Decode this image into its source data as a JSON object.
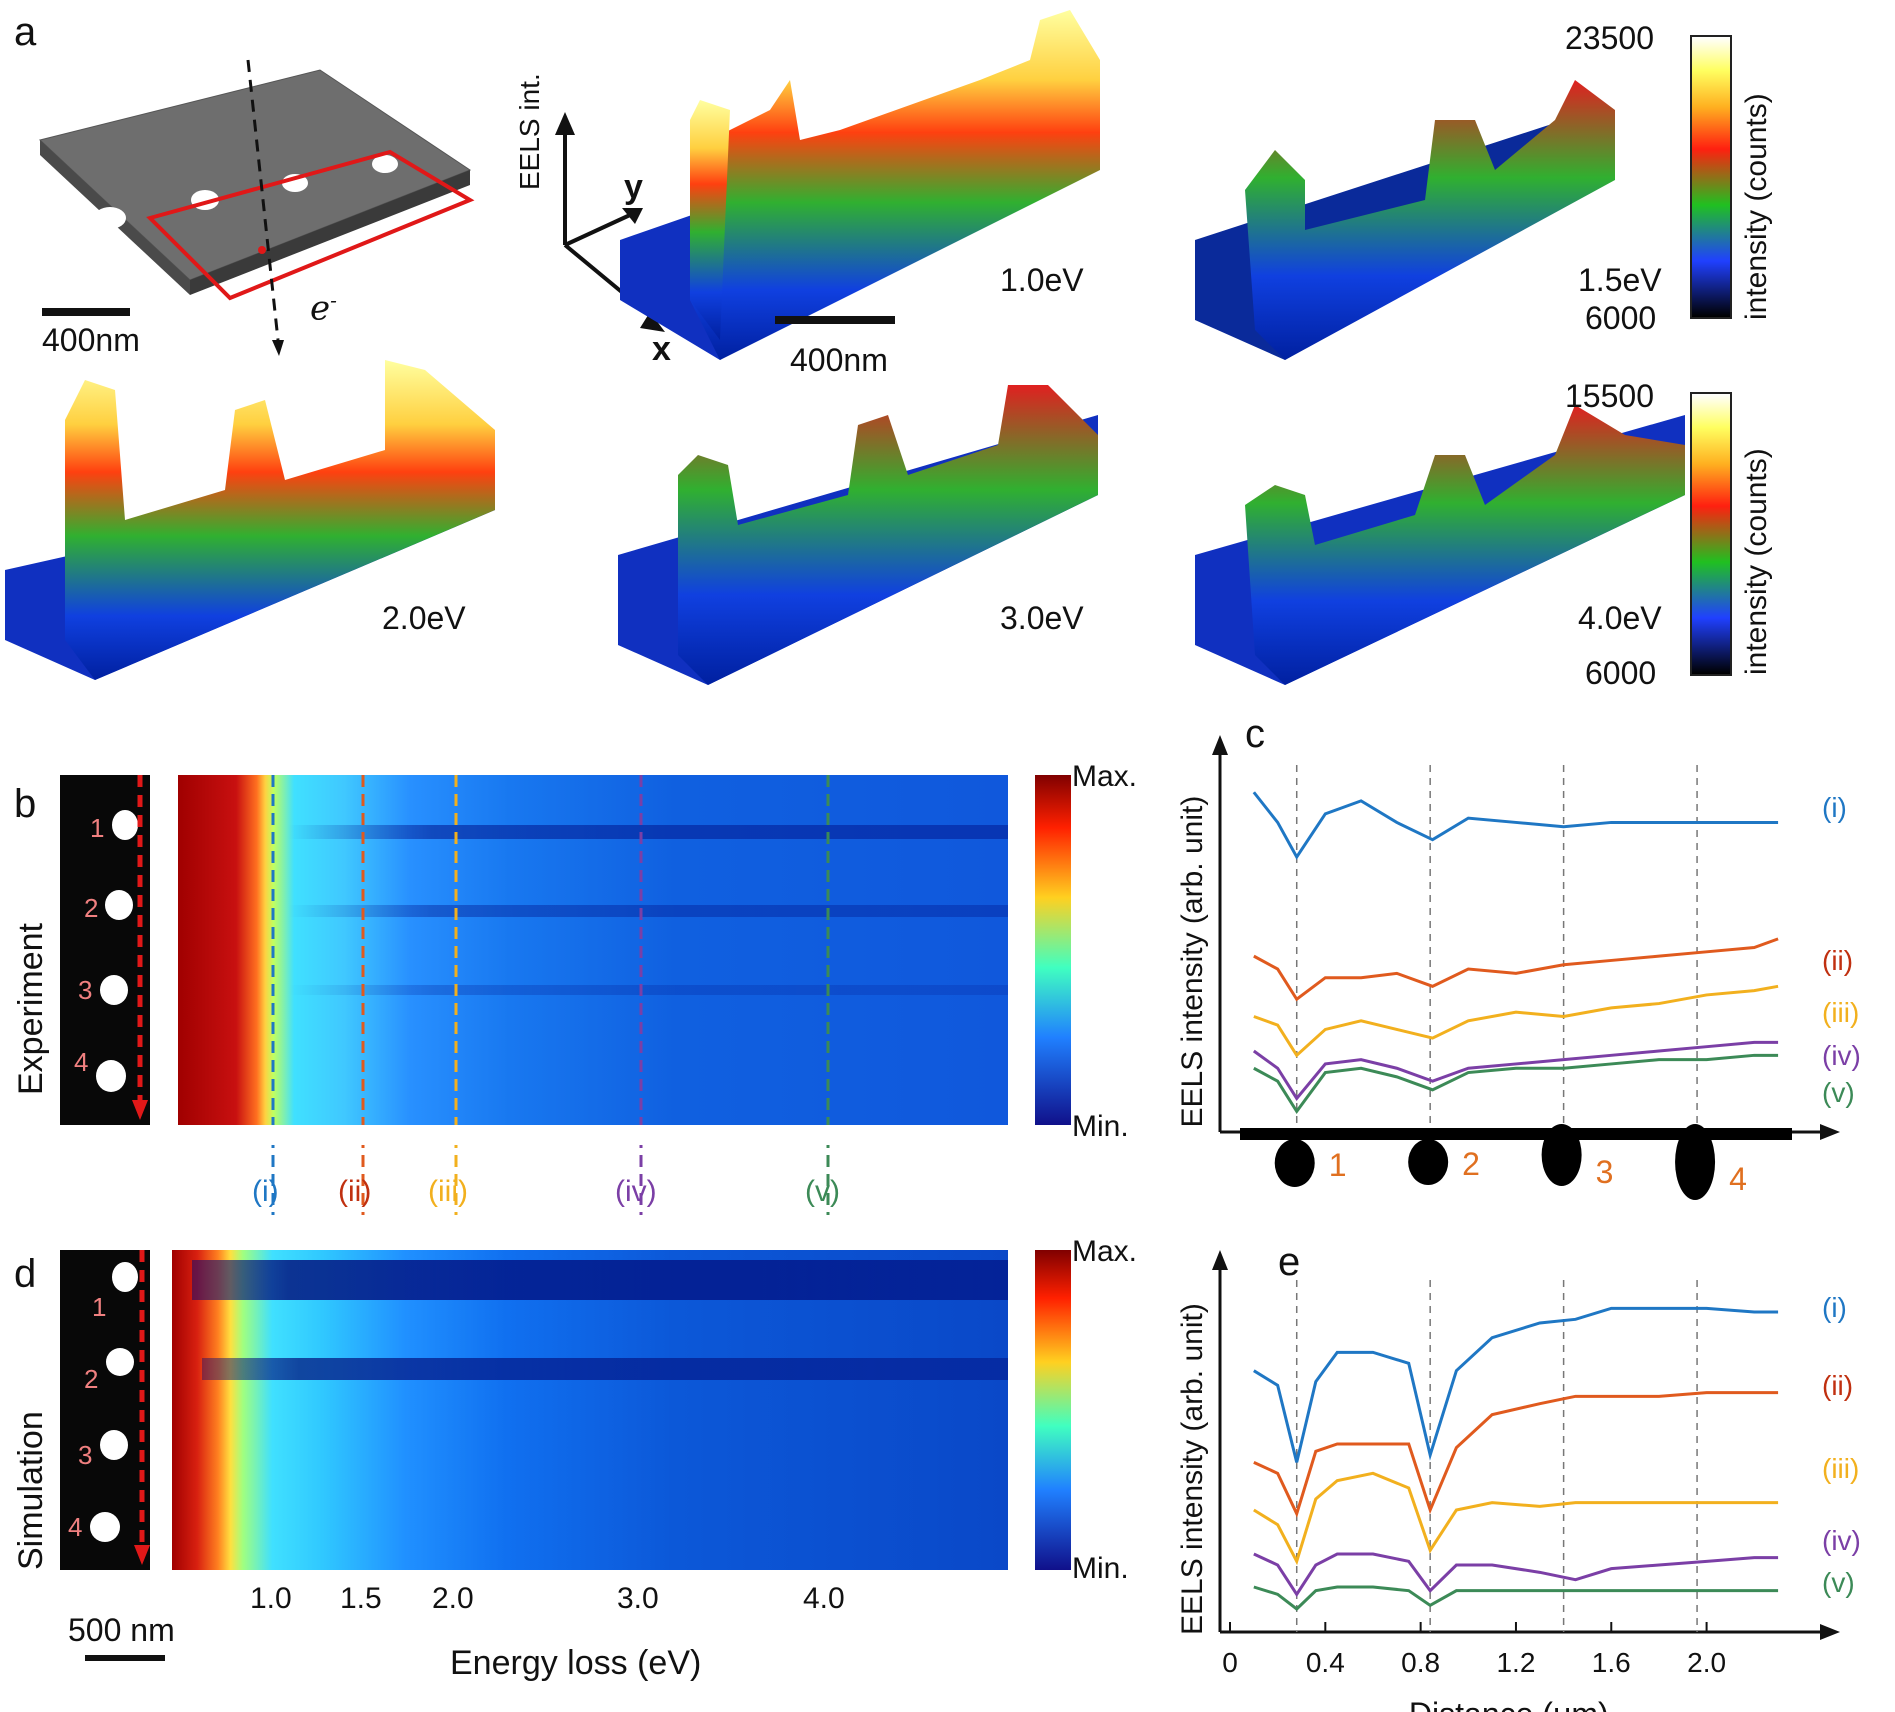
{
  "panels": {
    "a": "a",
    "b": "b",
    "c": "c",
    "d": "d",
    "e": "e"
  },
  "panel_a": {
    "scale_schematic": "400nm",
    "electron": "e",
    "electron_sup": "-",
    "axis_eels": "EELS int.",
    "axis_y": "y",
    "axis_x": "x",
    "scale_map": "400nm",
    "maps": [
      {
        "energy": "1.0eV"
      },
      {
        "energy": "1.5eV"
      },
      {
        "energy": "2.0eV"
      },
      {
        "energy": "3.0eV"
      },
      {
        "energy": "4.0eV"
      }
    ],
    "colorbar_top": {
      "max": "23500",
      "min": "6000",
      "label": "intensity (counts)"
    },
    "colorbar_bottom": {
      "max": "15500",
      "min": "6000",
      "label": "intensity (counts)"
    }
  },
  "panel_b": {
    "side_label": "Experiment",
    "hole_numbers": [
      "1",
      "2",
      "3",
      "4"
    ],
    "cb_max": "Max.",
    "cb_min": "Min."
  },
  "panel_d": {
    "side_label": "Simulation",
    "hole_numbers": [
      "1",
      "2",
      "3",
      "4"
    ],
    "cb_max": "Max.",
    "cb_min": "Min.",
    "scale_bar": "500 nm",
    "xlabel": "Energy loss (eV)",
    "xticks": [
      "1.0",
      "1.5",
      "2.0",
      "3.0",
      "4.0"
    ]
  },
  "cut_labels": [
    "(i)",
    "(ii)",
    "(iii)",
    "(iv)",
    "(v)"
  ],
  "colors": {
    "i": "#1f77c4",
    "ii": "#e05a1e",
    "iii": "#f2b01e",
    "iv": "#7b3fa6",
    "v": "#3c8a57",
    "pink": "#f08080",
    "hole_num": "#e07020"
  },
  "chart_data": [
    {
      "type": "line",
      "panel": "c",
      "ylabel": "EELS intensity (arb. unit)",
      "x": [
        0.1,
        0.2,
        0.28,
        0.4,
        0.55,
        0.7,
        0.85,
        1.0,
        1.2,
        1.4,
        1.6,
        1.8,
        2.0,
        2.2,
        2.3
      ],
      "series": [
        {
          "name": "(i)",
          "values": [
            9.6,
            8.9,
            8.1,
            9.1,
            9.4,
            8.9,
            8.5,
            9.0,
            8.9,
            8.8,
            8.9,
            8.9,
            8.9,
            8.9,
            8.9
          ]
        },
        {
          "name": "(ii)",
          "values": [
            5.8,
            5.5,
            4.8,
            5.3,
            5.3,
            5.4,
            5.1,
            5.5,
            5.4,
            5.6,
            5.7,
            5.8,
            5.9,
            6.0,
            6.2
          ]
        },
        {
          "name": "(iii)",
          "values": [
            4.4,
            4.2,
            3.5,
            4.1,
            4.3,
            4.1,
            3.9,
            4.3,
            4.5,
            4.4,
            4.6,
            4.7,
            4.9,
            5.0,
            5.1
          ]
        },
        {
          "name": "(iv)",
          "values": [
            3.6,
            3.2,
            2.5,
            3.3,
            3.4,
            3.2,
            2.9,
            3.2,
            3.3,
            3.4,
            3.5,
            3.6,
            3.7,
            3.8,
            3.8
          ]
        },
        {
          "name": "(v)",
          "values": [
            3.2,
            2.9,
            2.2,
            3.1,
            3.2,
            3.0,
            2.7,
            3.1,
            3.2,
            3.2,
            3.3,
            3.4,
            3.4,
            3.5,
            3.5
          ]
        }
      ],
      "xlim": [
        0,
        2.35
      ],
      "hole_markers": [
        0.28,
        0.84,
        1.4,
        1.96
      ],
      "hole_labels": [
        "1",
        "2",
        "3",
        "4"
      ]
    },
    {
      "type": "line",
      "panel": "e",
      "xlabel": "Distance (μm)",
      "ylabel": "EELS intensity (arb. unit)",
      "xticks": [
        "0",
        "0.4",
        "0.8",
        "1.2",
        "1.6",
        "2.0"
      ],
      "x": [
        0.1,
        0.2,
        0.28,
        0.36,
        0.45,
        0.6,
        0.75,
        0.84,
        0.95,
        1.1,
        1.3,
        1.45,
        1.6,
        1.8,
        2.0,
        2.2,
        2.3
      ],
      "series": [
        {
          "name": "(i)",
          "values": [
            8.8,
            8.4,
            6.3,
            8.5,
            9.3,
            9.3,
            9.0,
            6.5,
            8.8,
            9.7,
            10.1,
            10.2,
            10.5,
            10.5,
            10.5,
            10.4,
            10.4
          ]
        },
        {
          "name": "(ii)",
          "values": [
            6.3,
            6.0,
            4.9,
            6.6,
            6.8,
            6.8,
            6.8,
            5.0,
            6.7,
            7.6,
            7.9,
            8.1,
            8.1,
            8.1,
            8.2,
            8.2,
            8.2
          ]
        },
        {
          "name": "(iii)",
          "values": [
            5.0,
            4.6,
            3.6,
            5.3,
            5.8,
            6.0,
            5.6,
            3.9,
            5.0,
            5.2,
            5.1,
            5.2,
            5.2,
            5.2,
            5.2,
            5.2,
            5.2
          ]
        },
        {
          "name": "(iv)",
          "values": [
            3.8,
            3.5,
            2.7,
            3.5,
            3.8,
            3.8,
            3.6,
            2.8,
            3.5,
            3.5,
            3.3,
            3.1,
            3.4,
            3.5,
            3.6,
            3.7,
            3.7
          ]
        },
        {
          "name": "(v)",
          "values": [
            2.9,
            2.7,
            2.3,
            2.8,
            2.9,
            2.9,
            2.8,
            2.4,
            2.8,
            2.8,
            2.8,
            2.8,
            2.8,
            2.8,
            2.8,
            2.8,
            2.8
          ]
        }
      ],
      "xlim": [
        0,
        2.35
      ],
      "hole_markers": [
        0.28,
        0.84,
        1.4,
        1.96
      ]
    }
  ]
}
